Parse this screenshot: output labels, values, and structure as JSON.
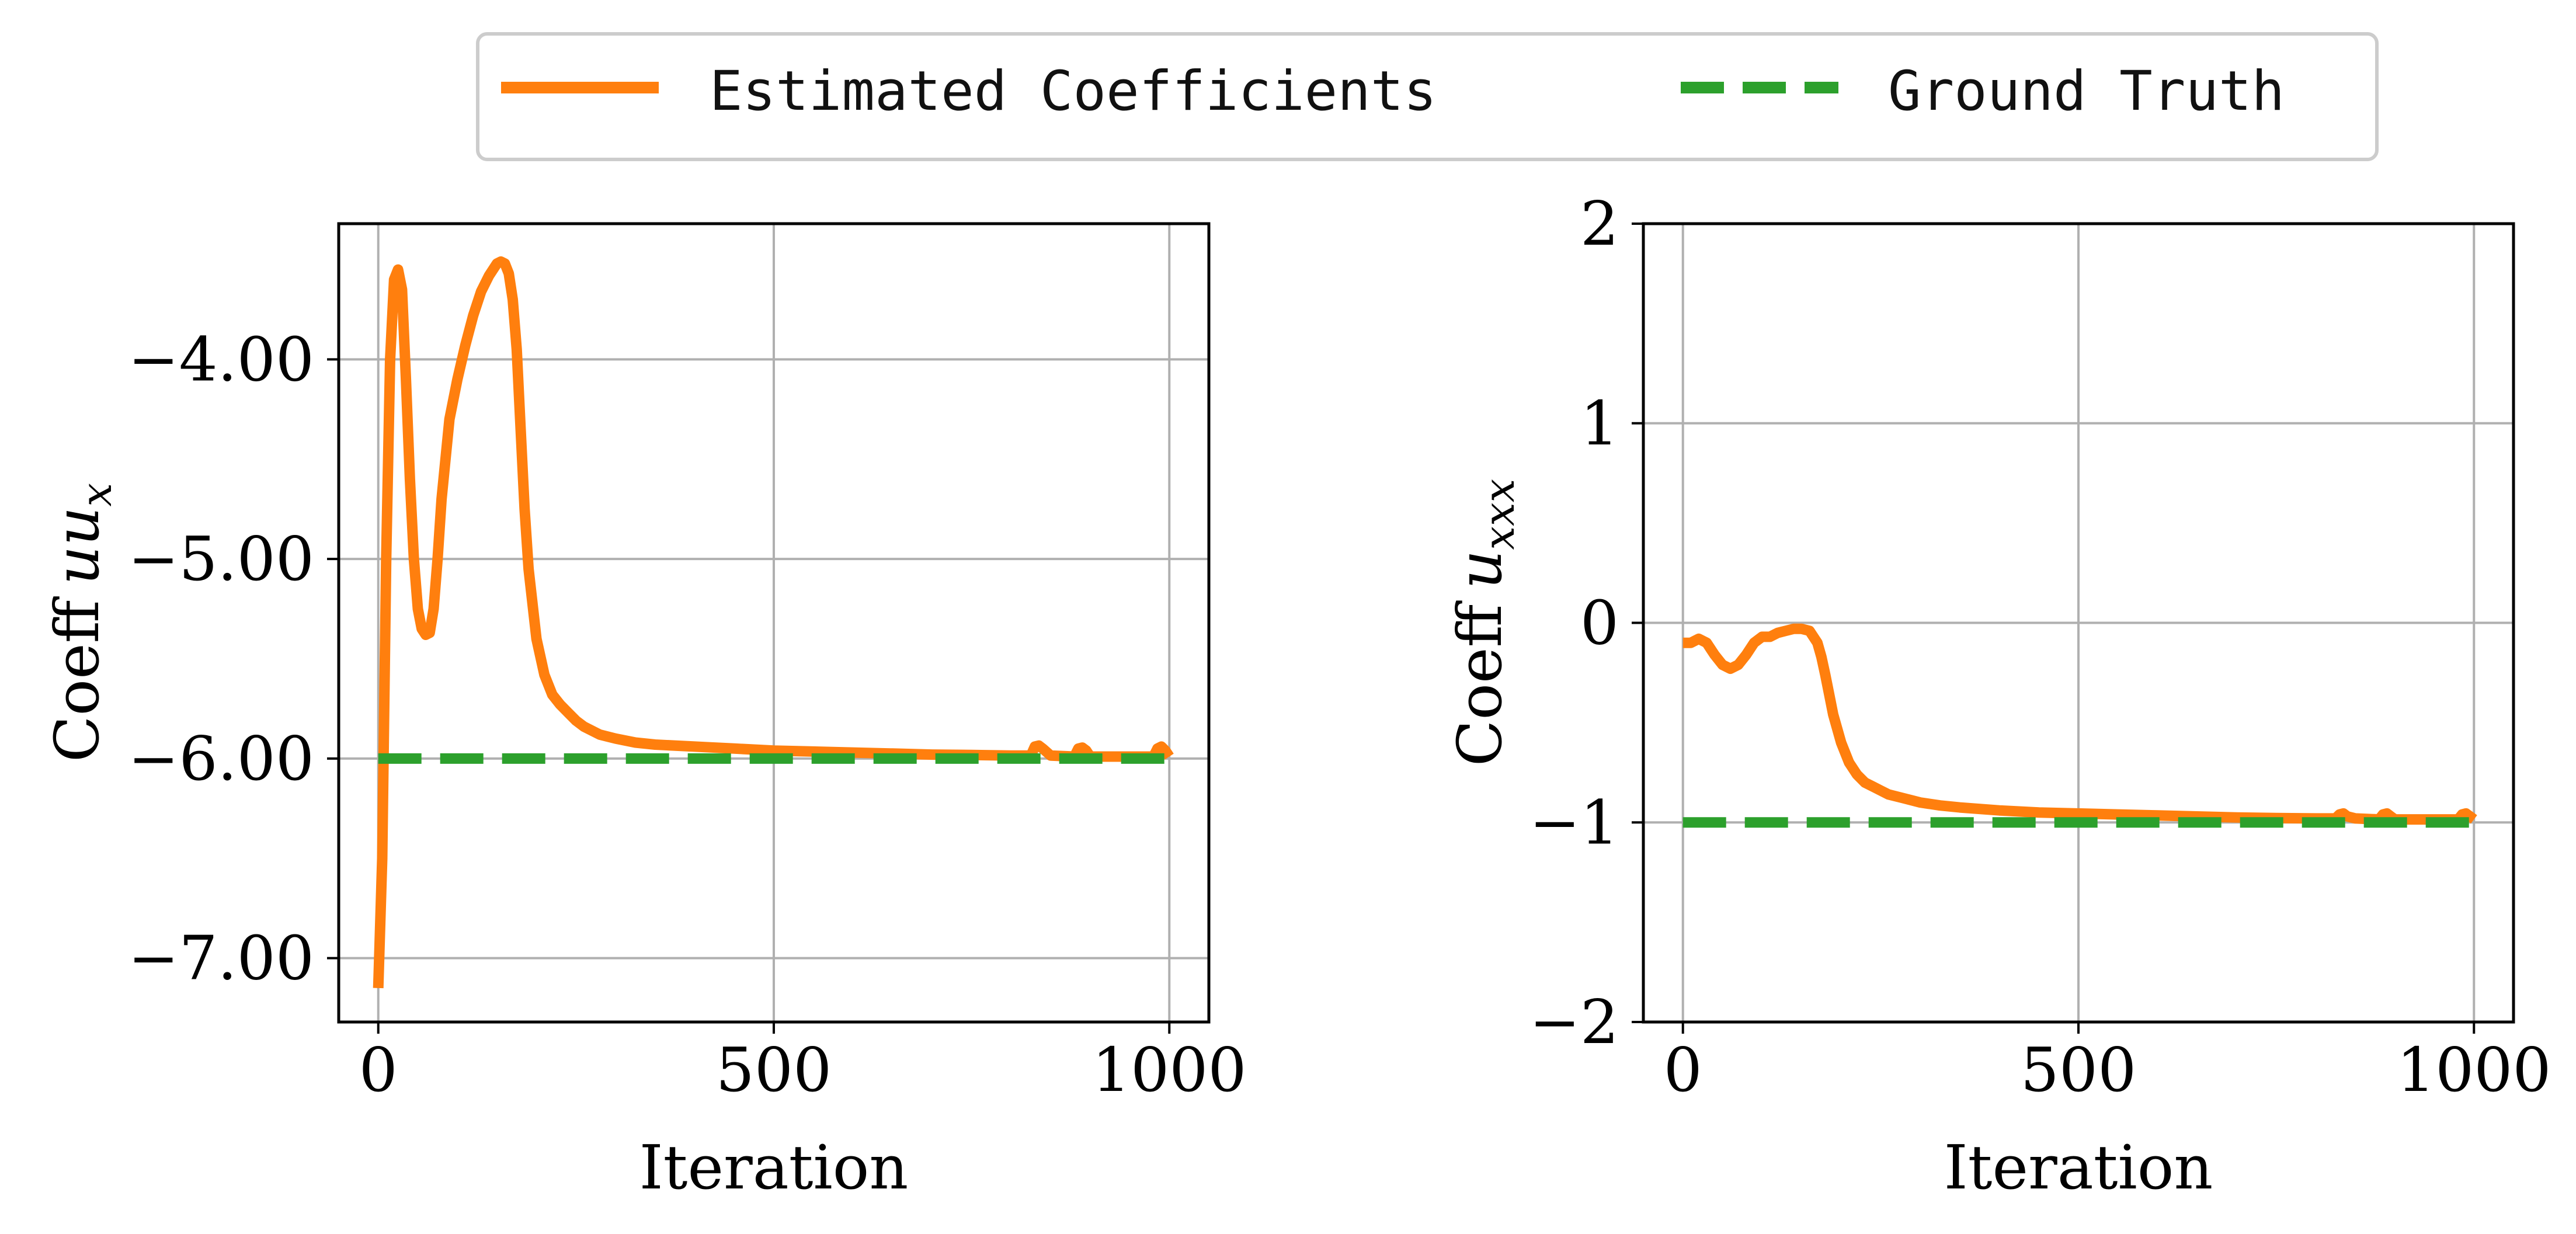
{
  "legend": {
    "items": [
      {
        "label": "Estimated Coefficients",
        "color": "#ff7f0e",
        "style": "solid"
      },
      {
        "label": "Ground Truth",
        "color": "#2ca02c",
        "style": "dashed"
      }
    ],
    "placement": "top-center"
  },
  "chart_data": [
    {
      "type": "line",
      "title": "",
      "xlabel": "Iteration",
      "ylabel_text": "Coeff",
      "ylabel_math": "uu",
      "ylabel_sub": "x",
      "xlim": [
        -50,
        1050
      ],
      "ylim": [
        -7.32,
        -3.32
      ],
      "xticks": [
        0,
        500,
        1000
      ],
      "xtick_labels": [
        "0",
        "500",
        "1000"
      ],
      "yticks": [
        -7.0,
        -6.0,
        -5.0,
        -4.0
      ],
      "ytick_labels": [
        "−7.00",
        "−6.00",
        "−5.00",
        "−4.00"
      ],
      "grid": true,
      "series": [
        {
          "name": "Estimated Coefficients",
          "color": "#ff7f0e",
          "style": "solid",
          "x": [
            0,
            5,
            10,
            15,
            20,
            25,
            30,
            35,
            40,
            45,
            50,
            55,
            60,
            65,
            70,
            75,
            80,
            90,
            100,
            110,
            120,
            130,
            140,
            150,
            155,
            160,
            165,
            170,
            175,
            180,
            185,
            190,
            200,
            210,
            220,
            230,
            240,
            250,
            260,
            280,
            300,
            325,
            350,
            400,
            450,
            500,
            550,
            600,
            650,
            700,
            750,
            800,
            825,
            830,
            835,
            840,
            850,
            880,
            885,
            890,
            895,
            900,
            950,
            980,
            985,
            990,
            995,
            1000
          ],
          "y": [
            -7.15,
            -6.5,
            -5.0,
            -4.0,
            -3.6,
            -3.55,
            -3.65,
            -4.1,
            -4.6,
            -5.0,
            -5.25,
            -5.35,
            -5.38,
            -5.37,
            -5.25,
            -5.0,
            -4.7,
            -4.3,
            -4.1,
            -3.93,
            -3.78,
            -3.66,
            -3.58,
            -3.52,
            -3.51,
            -3.52,
            -3.57,
            -3.7,
            -3.95,
            -4.35,
            -4.75,
            -5.05,
            -5.4,
            -5.58,
            -5.68,
            -5.73,
            -5.77,
            -5.81,
            -5.84,
            -5.88,
            -5.9,
            -5.92,
            -5.93,
            -5.94,
            -5.95,
            -5.96,
            -5.965,
            -5.97,
            -5.975,
            -5.98,
            -5.982,
            -5.985,
            -5.985,
            -5.94,
            -5.935,
            -5.95,
            -5.985,
            -5.99,
            -5.95,
            -5.945,
            -5.96,
            -5.99,
            -5.99,
            -5.99,
            -5.95,
            -5.94,
            -5.96,
            -5.99
          ]
        },
        {
          "name": "Ground Truth",
          "color": "#2ca02c",
          "style": "dashed",
          "x": [
            0,
            1000
          ],
          "y": [
            -6.0,
            -6.0
          ]
        }
      ]
    },
    {
      "type": "line",
      "title": "",
      "xlabel": "Iteration",
      "ylabel_text": "Coeff",
      "ylabel_math": "u",
      "ylabel_sub": "xxx",
      "xlim": [
        -50,
        1050
      ],
      "ylim": [
        -2,
        2
      ],
      "xticks": [
        0,
        500,
        1000
      ],
      "xtick_labels": [
        "0",
        "500",
        "1000"
      ],
      "yticks": [
        -2,
        -1,
        0,
        1,
        2
      ],
      "ytick_labels": [
        "−2",
        "−1",
        "0",
        "1",
        "2"
      ],
      "grid": true,
      "series": [
        {
          "name": "Estimated Coefficients",
          "color": "#ff7f0e",
          "style": "solid",
          "x": [
            0,
            10,
            20,
            30,
            40,
            50,
            60,
            70,
            80,
            90,
            100,
            110,
            120,
            130,
            140,
            150,
            160,
            170,
            175,
            180,
            185,
            190,
            200,
            210,
            220,
            230,
            240,
            250,
            260,
            280,
            300,
            325,
            350,
            400,
            450,
            500,
            550,
            600,
            650,
            700,
            750,
            800,
            825,
            830,
            835,
            840,
            850,
            880,
            885,
            890,
            895,
            900,
            950,
            980,
            985,
            990,
            995,
            1000
          ],
          "y": [
            -0.1,
            -0.1,
            -0.08,
            -0.1,
            -0.16,
            -0.21,
            -0.23,
            -0.21,
            -0.16,
            -0.1,
            -0.07,
            -0.07,
            -0.05,
            -0.04,
            -0.03,
            -0.03,
            -0.04,
            -0.1,
            -0.17,
            -0.26,
            -0.36,
            -0.46,
            -0.6,
            -0.7,
            -0.76,
            -0.8,
            -0.82,
            -0.84,
            -0.86,
            -0.88,
            -0.9,
            -0.915,
            -0.925,
            -0.94,
            -0.95,
            -0.955,
            -0.96,
            -0.965,
            -0.97,
            -0.975,
            -0.978,
            -0.98,
            -0.98,
            -0.96,
            -0.955,
            -0.97,
            -0.98,
            -0.985,
            -0.96,
            -0.955,
            -0.97,
            -0.985,
            -0.985,
            -0.985,
            -0.96,
            -0.955,
            -0.97,
            -0.985
          ]
        },
        {
          "name": "Ground Truth",
          "color": "#2ca02c",
          "style": "dashed",
          "x": [
            0,
            1000
          ],
          "y": [
            -1.0,
            -1.0
          ]
        }
      ]
    }
  ]
}
